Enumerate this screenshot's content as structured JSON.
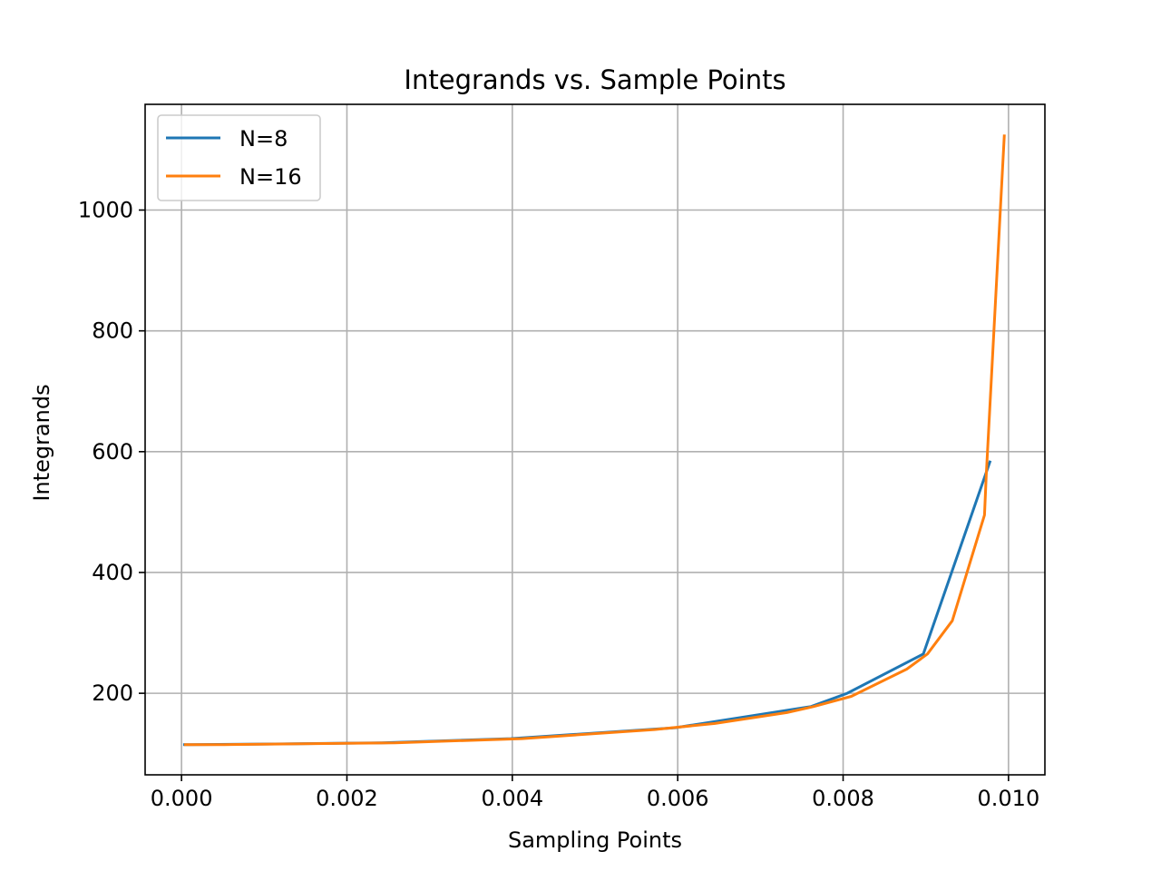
{
  "chart_data": {
    "type": "line",
    "title": "Integrands vs. Sample Points",
    "xlabel": "Sampling Points",
    "ylabel": "Integrands",
    "xlim": [
      -0.00044,
      0.01044
    ],
    "ylim": [
      65,
      1175
    ],
    "xticks": [
      0.0,
      0.002,
      0.004,
      0.006,
      0.008,
      0.01
    ],
    "xtick_labels": [
      "0.000",
      "0.002",
      "0.004",
      "0.006",
      "0.008",
      "0.010"
    ],
    "yticks": [
      200,
      400,
      600,
      800,
      1000
    ],
    "ytick_labels": [
      "200",
      "400",
      "600",
      "800",
      "1000"
    ],
    "grid": true,
    "legend_position": "top-left",
    "series": [
      {
        "name": "N=8",
        "color": "#1f77b4",
        "x": [
          2e-05,
          0.0001,
          0.00113,
          0.00242,
          0.00398,
          0.00597,
          0.00761,
          0.00805,
          0.00897,
          0.00978
        ],
        "y": [
          115,
          115,
          116,
          118,
          125,
          143,
          178,
          200,
          265,
          585
        ]
      },
      {
        "name": "N=16",
        "color": "#ff7f0e",
        "x": [
          3e-05,
          0.00052,
          0.00123,
          0.00258,
          0.00412,
          0.00572,
          0.00645,
          0.00732,
          0.00764,
          0.0081,
          0.00877,
          0.00902,
          0.00932,
          0.00971,
          0.00973,
          0.00995
        ],
        "y": [
          115,
          115,
          116,
          118,
          125,
          140,
          150,
          168,
          178,
          195,
          240,
          265,
          320,
          495,
          560,
          1125
        ]
      }
    ]
  }
}
